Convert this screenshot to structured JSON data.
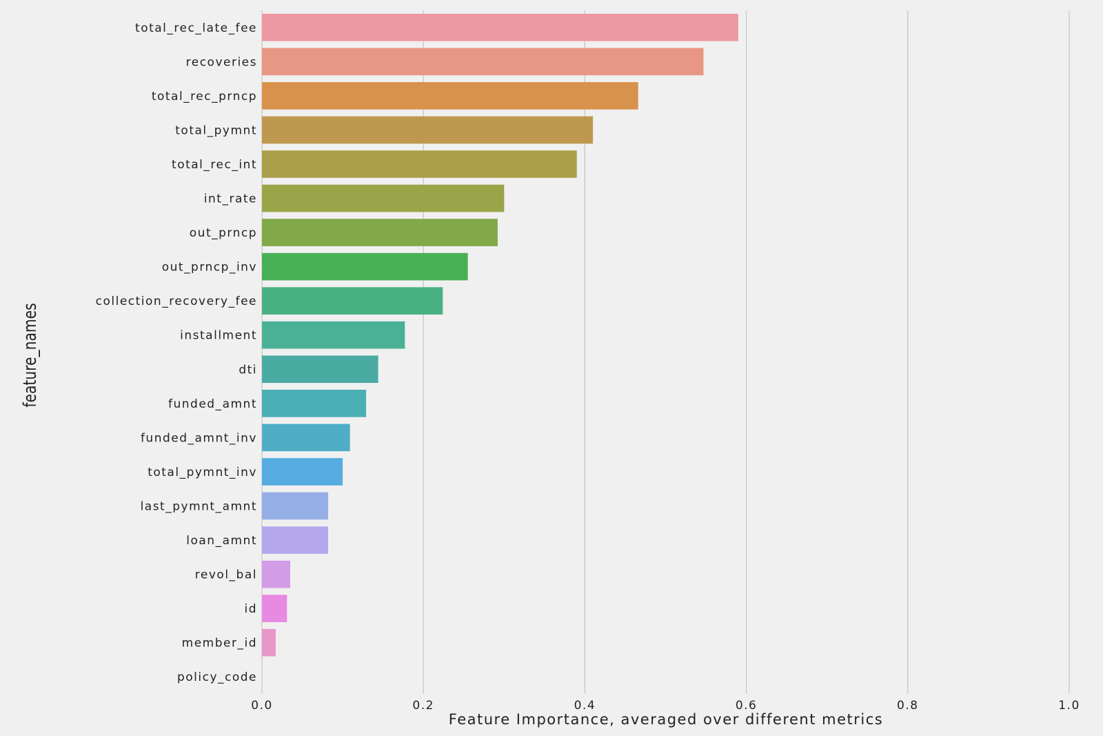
{
  "chart_data": {
    "type": "bar",
    "orientation": "horizontal",
    "title": "",
    "xlabel": "Feature Importance, averaged over different metrics",
    "ylabel": "feature_names",
    "xlim": [
      0.0,
      1.0
    ],
    "xticks": [
      0.0,
      0.2,
      0.4,
      0.6,
      0.8,
      1.0
    ],
    "xtick_labels": [
      "0.0",
      "0.2",
      "0.4",
      "0.6",
      "0.8",
      "1.0"
    ],
    "grid": "vertical",
    "categories": [
      "total_rec_late_fee",
      "recoveries",
      "total_rec_prncp",
      "total_pymnt",
      "total_rec_int",
      "int_rate",
      "out_prncp",
      "out_prncp_inv",
      "collection_recovery_fee",
      "installment",
      "dti",
      "funded_amnt",
      "funded_amnt_inv",
      "total_pymnt_inv",
      "last_pymnt_amnt",
      "loan_amnt",
      "revol_bal",
      "id",
      "member_id",
      "policy_code"
    ],
    "values": [
      0.59,
      0.547,
      0.466,
      0.41,
      0.39,
      0.3,
      0.292,
      0.255,
      0.224,
      0.177,
      0.144,
      0.129,
      0.109,
      0.1,
      0.082,
      0.082,
      0.035,
      0.031,
      0.017,
      0.0
    ],
    "colors": [
      "#ee98a3",
      "#e99785",
      "#d8924c",
      "#bf984f",
      "#aa9e48",
      "#99a548",
      "#82a948",
      "#48b055",
      "#49b082",
      "#4ab196",
      "#4aaba3",
      "#4caeb5",
      "#50adc6",
      "#56ace0",
      "#96aee6",
      "#b5a7ec",
      "#d39ce6",
      "#e88ae4",
      "#e996c9",
      "#ea93b0"
    ]
  }
}
